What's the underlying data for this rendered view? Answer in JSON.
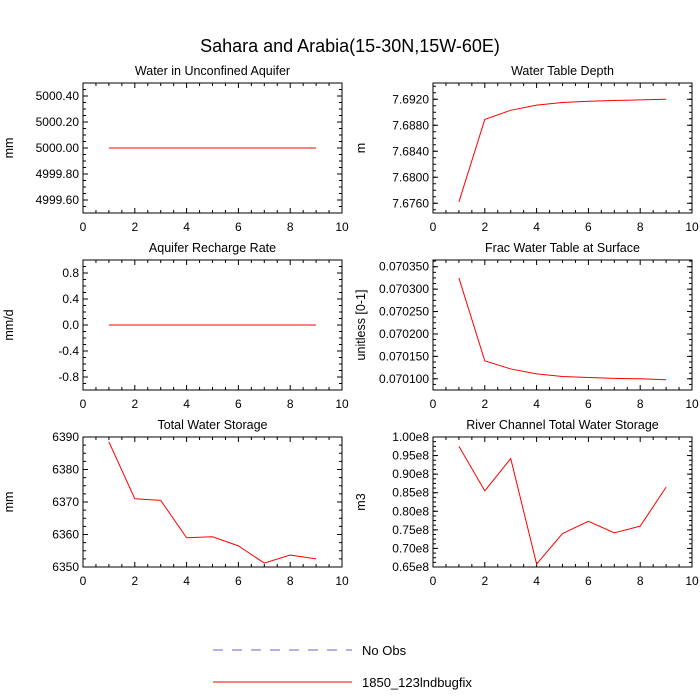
{
  "figure": {
    "title": "Sahara and Arabia(15-30N,15W-60E)"
  },
  "legend": {
    "entries": [
      {
        "label": "No Obs",
        "color": "#6666cc",
        "style": "dashed"
      },
      {
        "label": "1850_123lndbugfix",
        "color": "#ff0000",
        "style": "solid"
      }
    ]
  },
  "chart_data": [
    {
      "type": "line",
      "title": "Water in Unconfined Aquifer",
      "xlabel": "",
      "ylabel": "mm",
      "xlim": [
        0,
        10
      ],
      "ylim": [
        4999.5,
        5000.5
      ],
      "xticks": [
        "0",
        "2",
        "4",
        "6",
        "8",
        "10"
      ],
      "xtick_values": [
        0,
        2,
        4,
        6,
        8,
        10
      ],
      "yticks": [
        "4999.60",
        "4999.80",
        "5000.00",
        "5000.20",
        "5000.40"
      ],
      "ytick_values": [
        4999.6,
        4999.8,
        5000.0,
        5000.2,
        5000.4
      ],
      "x": [
        1,
        2,
        3,
        4,
        5,
        6,
        7,
        8,
        9
      ],
      "series": [
        {
          "name": "1850_123lndbugfix",
          "color": "#ff0000",
          "values": [
            5000.0,
            5000.0,
            5000.0,
            5000.0,
            5000.0,
            5000.0,
            5000.0,
            5000.0,
            5000.0
          ]
        }
      ]
    },
    {
      "type": "line",
      "title": "Water Table Depth",
      "xlabel": "",
      "ylabel": "m",
      "xlim": [
        0,
        10
      ],
      "ylim": [
        7.6745,
        7.6945
      ],
      "xticks": [
        "0",
        "2",
        "4",
        "6",
        "8",
        "10"
      ],
      "xtick_values": [
        0,
        2,
        4,
        6,
        8,
        10
      ],
      "yticks": [
        "7.6760",
        "7.6800",
        "7.6840",
        "7.6880",
        "7.6920"
      ],
      "ytick_values": [
        7.676,
        7.68,
        7.684,
        7.688,
        7.692
      ],
      "x": [
        1,
        2,
        3,
        4,
        5,
        6,
        7,
        8,
        9
      ],
      "series": [
        {
          "name": "1850_123lndbugfix",
          "color": "#ff0000",
          "values": [
            7.6762,
            7.6889,
            7.6903,
            7.6911,
            7.6915,
            7.6917,
            7.6918,
            7.6919,
            7.692
          ]
        }
      ]
    },
    {
      "type": "line",
      "title": "Aquifer Recharge Rate",
      "xlabel": "",
      "ylabel": "mm/d",
      "xlim": [
        0,
        10
      ],
      "ylim": [
        -1.0,
        1.0
      ],
      "xticks": [
        "0",
        "2",
        "4",
        "6",
        "8",
        "10"
      ],
      "xtick_values": [
        0,
        2,
        4,
        6,
        8,
        10
      ],
      "yticks": [
        "-0.8",
        "-0.4",
        "0.0",
        "0.4",
        "0.8"
      ],
      "ytick_values": [
        -0.8,
        -0.4,
        0.0,
        0.4,
        0.8
      ],
      "x": [
        1,
        2,
        3,
        4,
        5,
        6,
        7,
        8,
        9
      ],
      "series": [
        {
          "name": "1850_123lndbugfix",
          "color": "#ff0000",
          "values": [
            0,
            0,
            0,
            0,
            0,
            0,
            0,
            0,
            0
          ]
        }
      ]
    },
    {
      "type": "line",
      "title": "Frac Water Table at Surface",
      "xlabel": "",
      "ylabel": "unitless [0-1]",
      "xlim": [
        0,
        10
      ],
      "ylim": [
        0.070075,
        0.070365
      ],
      "xticks": [
        "0",
        "2",
        "4",
        "6",
        "8",
        "10"
      ],
      "xtick_values": [
        0,
        2,
        4,
        6,
        8,
        10
      ],
      "yticks": [
        "0.070100",
        "0.070150",
        "0.070200",
        "0.070250",
        "0.070300",
        "0.070350"
      ],
      "ytick_values": [
        0.0701,
        0.07015,
        0.0702,
        0.07025,
        0.0703,
        0.07035
      ],
      "x": [
        1,
        2,
        3,
        4,
        5,
        6,
        7,
        8,
        9
      ],
      "series": [
        {
          "name": "1850_123lndbugfix",
          "color": "#ff0000",
          "values": [
            0.070325,
            0.07014,
            0.070122,
            0.070111,
            0.070105,
            0.070103,
            0.070101,
            0.0701,
            0.070098
          ]
        }
      ]
    },
    {
      "type": "line",
      "title": "Total Water Storage",
      "xlabel": "",
      "ylabel": "mm",
      "xlim": [
        0,
        10
      ],
      "ylim": [
        6350,
        6390
      ],
      "xticks": [
        "0",
        "2",
        "4",
        "6",
        "8",
        "10"
      ],
      "xtick_values": [
        0,
        2,
        4,
        6,
        8,
        10
      ],
      "yticks": [
        "6350",
        "6360",
        "6370",
        "6380",
        "6390"
      ],
      "ytick_values": [
        6350,
        6360,
        6370,
        6380,
        6390
      ],
      "x": [
        1,
        2,
        3,
        4,
        5,
        6,
        7,
        8,
        9
      ],
      "series": [
        {
          "name": "1850_123lndbugfix",
          "color": "#ff0000",
          "values": [
            6388.5,
            6371.0,
            6370.5,
            6359.0,
            6359.3,
            6356.5,
            6351.2,
            6353.7,
            6352.5
          ]
        }
      ]
    },
    {
      "type": "line",
      "title": "River Channel Total Water Storage",
      "xlabel": "",
      "ylabel": "m3",
      "xlim": [
        0,
        10
      ],
      "ylim": [
        65000000.0,
        100000000.0
      ],
      "xticks": [
        "0",
        "2",
        "4",
        "6",
        "8",
        "10"
      ],
      "xtick_values": [
        0,
        2,
        4,
        6,
        8,
        10
      ],
      "yticks": [
        "0.65e8",
        "0.70e8",
        "0.75e8",
        "0.80e8",
        "0.85e8",
        "0.90e8",
        "0.95e8",
        "1.00e8"
      ],
      "ytick_values": [
        65000000.0,
        70000000.0,
        75000000.0,
        80000000.0,
        85000000.0,
        90000000.0,
        95000000.0,
        100000000.0
      ],
      "x": [
        1,
        2,
        3,
        4,
        5,
        6,
        7,
        8,
        9
      ],
      "series": [
        {
          "name": "1850_123lndbugfix",
          "color": "#ff0000",
          "values": [
            97500000.0,
            85500000.0,
            94200000.0,
            65800000.0,
            74000000.0,
            77300000.0,
            74200000.0,
            76000000.0,
            86500000.0
          ]
        }
      ]
    }
  ]
}
